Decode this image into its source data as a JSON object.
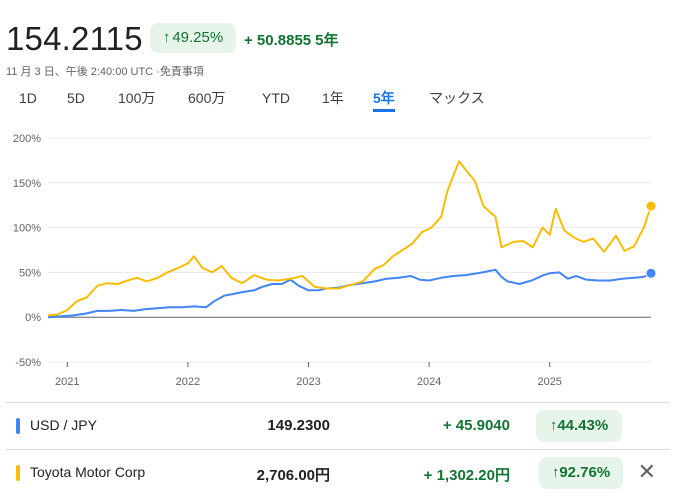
{
  "header": {
    "price": "154.2115",
    "percent_change": "49.25%",
    "percent_arrow": "↑",
    "absolute_change": "+ 50.8855",
    "period": "5年",
    "timestamp": "11 月 3 日、午後 2:40:00 UTC ·免責事項"
  },
  "tabs": [
    {
      "label": "1D",
      "active": false
    },
    {
      "label": "5D",
      "active": false
    },
    {
      "label": "100万",
      "active": false
    },
    {
      "label": "600万",
      "active": false
    },
    {
      "label": "YTD",
      "active": false
    },
    {
      "label": "1年",
      "active": false
    },
    {
      "label": "5年",
      "active": true
    },
    {
      "label": "マックス",
      "active": false
    }
  ],
  "legend": [
    {
      "name": "USD / JPY",
      "value": "149.2300",
      "change": "+ 45.9040",
      "arrow": "↑",
      "percent": "44.43%",
      "color": "#4285f4"
    },
    {
      "name": "Toyota Motor Corp",
      "value": "2,706.00円",
      "change": "+ 1,302.20円",
      "arrow": "↑",
      "percent": "92.76%",
      "color": "#fbbc04"
    }
  ],
  "close_icon": "close-icon",
  "chart_data": {
    "type": "line",
    "title": "",
    "xlabel": "",
    "ylabel": "",
    "ylim": [
      -50,
      200
    ],
    "yticks": [
      -50,
      0,
      50,
      100,
      150,
      200
    ],
    "ytick_labels": [
      "-50%",
      "0%",
      "50%",
      "100%",
      "150%",
      "200%"
    ],
    "xtick_labels": [
      "2021",
      "2022",
      "2023",
      "2024",
      "2025"
    ],
    "xtick_values": [
      2021.0,
      2022.0,
      2023.0,
      2024.0,
      2025.0
    ],
    "xlim": [
      2020.84,
      2025.84
    ],
    "grid": true,
    "series": [
      {
        "name": "USD / JPY",
        "color": "#4285f4",
        "x": [
          2020.84,
          2020.95,
          2021.05,
          2021.15,
          2021.25,
          2021.35,
          2021.45,
          2021.55,
          2021.65,
          2021.75,
          2021.85,
          2021.95,
          2022.05,
          2022.15,
          2022.22,
          2022.3,
          2022.38,
          2022.45,
          2022.55,
          2022.62,
          2022.7,
          2022.78,
          2022.85,
          2022.92,
          2023.0,
          2023.08,
          2023.15,
          2023.25,
          2023.35,
          2023.45,
          2023.55,
          2023.65,
          2023.75,
          2023.85,
          2023.92,
          2024.0,
          2024.1,
          2024.2,
          2024.3,
          2024.4,
          2024.48,
          2024.55,
          2024.6,
          2024.65,
          2024.75,
          2024.85,
          2024.95,
          2025.0,
          2025.08,
          2025.15,
          2025.22,
          2025.3,
          2025.4,
          2025.5,
          2025.6,
          2025.7,
          2025.78,
          2025.84
        ],
        "y": [
          0,
          1,
          2,
          4,
          7,
          7,
          8,
          7,
          9,
          10,
          11,
          11,
          12,
          11,
          18,
          24,
          26,
          28,
          30,
          34,
          37,
          37,
          42,
          35,
          30,
          30,
          32,
          33,
          36,
          38,
          40,
          43,
          44,
          46,
          42,
          41,
          44,
          46,
          47,
          49,
          51,
          53,
          45,
          40,
          37,
          41,
          47,
          49,
          50,
          43,
          46,
          42,
          41,
          41,
          43,
          44,
          45,
          49
        ]
      },
      {
        "name": "Toyota Motor Corp",
        "color": "#fbbc04",
        "x": [
          2020.84,
          2020.92,
          2021.0,
          2021.08,
          2021.16,
          2021.25,
          2021.33,
          2021.42,
          2021.5,
          2021.58,
          2021.66,
          2021.75,
          2021.83,
          2021.92,
          2022.0,
          2022.05,
          2022.12,
          2022.2,
          2022.28,
          2022.36,
          2022.45,
          2022.55,
          2022.65,
          2022.75,
          2022.85,
          2022.95,
          2023.05,
          2023.15,
          2023.25,
          2023.35,
          2023.45,
          2023.55,
          2023.62,
          2023.7,
          2023.78,
          2023.86,
          2023.94,
          2024.02,
          2024.1,
          2024.15,
          2024.2,
          2024.25,
          2024.3,
          2024.38,
          2024.45,
          2024.55,
          2024.6,
          2024.7,
          2024.78,
          2024.86,
          2024.94,
          2025.0,
          2025.05,
          2025.12,
          2025.2,
          2025.28,
          2025.36,
          2025.45,
          2025.55,
          2025.62,
          2025.7,
          2025.78,
          2025.84
        ],
        "y": [
          2,
          3,
          8,
          18,
          22,
          35,
          38,
          37,
          41,
          44,
          40,
          44,
          50,
          55,
          60,
          68,
          55,
          50,
          57,
          44,
          38,
          47,
          42,
          41,
          43,
          46,
          34,
          32,
          32,
          36,
          40,
          54,
          58,
          68,
          75,
          82,
          95,
          100,
          112,
          140,
          158,
          174,
          165,
          152,
          124,
          112,
          78,
          84,
          85,
          78,
          100,
          92,
          121,
          97,
          89,
          84,
          88,
          73,
          91,
          74,
          79,
          100,
          124
        ]
      }
    ]
  }
}
